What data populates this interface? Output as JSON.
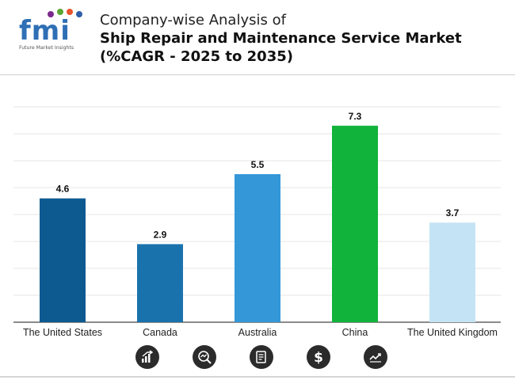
{
  "header": {
    "logo_text": "fmi",
    "logo_subtext": "Future Market Insights",
    "title_line1": "Company-wise Analysis of",
    "title_line2": "Ship Repair and Maintenance Service Market",
    "title_line3": "(%CAGR - 2025 to 2035)"
  },
  "chart_data": {
    "type": "bar",
    "title": "Company-wise Analysis of Ship Repair and Maintenance Service Market (%CAGR - 2025 to 2035)",
    "categories": [
      "The United States",
      "Canada",
      "Australia",
      "China",
      "The United Kingdom"
    ],
    "values": [
      4.6,
      2.9,
      5.5,
      7.3,
      3.7
    ],
    "value_labels": [
      "4.6",
      "2.9",
      "5.5",
      "7.3",
      "3.7"
    ],
    "bar_colors": [
      "#0d5a91",
      "#1a72ad",
      "#3497d7",
      "#11b33a",
      "#c4e3f5"
    ],
    "xlabel": "",
    "ylabel": "",
    "ylim": [
      0,
      8
    ],
    "grid": true,
    "legend": "none"
  },
  "footer_icons": [
    "growth-chart-icon",
    "magnifier-chart-icon",
    "document-icon",
    "dollar-icon",
    "trend-line-icon"
  ]
}
